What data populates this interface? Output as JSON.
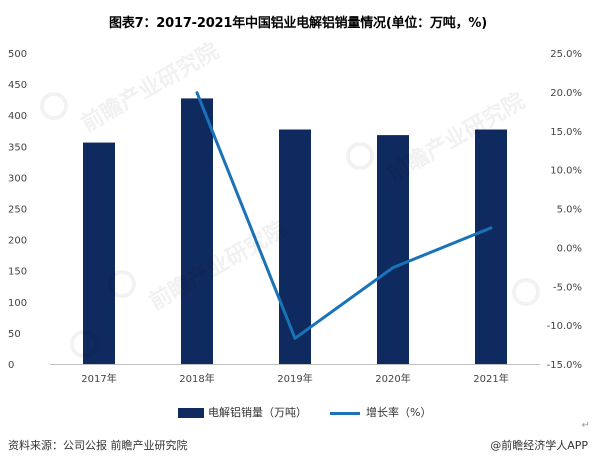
{
  "title": "图表7：2017-2021年中国铝业电解铝销量情况(单位：万吨，%)",
  "source": "资料来源：公司公报 前瞻产业研究院",
  "brand": "@前瞻经济学人APP",
  "watermark": "前瞻产业研究院",
  "return_mark": "↵",
  "colors": {
    "bar": "#0f2a5e",
    "line": "#1a73b8"
  },
  "chart_data": {
    "type": "bar",
    "categories": [
      "2017年",
      "2018年",
      "2019年",
      "2020年",
      "2021年"
    ],
    "series": [
      {
        "name": "电解铝销量（万吨）",
        "type": "bar",
        "axis": "left",
        "values": [
          356,
          427,
          377,
          368,
          377
        ]
      },
      {
        "name": "增长率（%）",
        "type": "line",
        "axis": "right",
        "values": [
          null,
          19.9,
          -11.7,
          -2.6,
          2.5
        ]
      }
    ],
    "y_left": {
      "min": 0,
      "max": 500,
      "step": 50,
      "ticks": [
        "0",
        "50",
        "100",
        "150",
        "200",
        "250",
        "300",
        "350",
        "400",
        "450",
        "500"
      ]
    },
    "y_right": {
      "min": -15,
      "max": 25,
      "step": 5,
      "ticks": [
        "-15.0%",
        "-10.0%",
        "-5.0%",
        "0.0%",
        "5.0%",
        "10.0%",
        "15.0%",
        "20.0%",
        "25.0%"
      ]
    },
    "grid": false,
    "legend_position": "bottom"
  }
}
